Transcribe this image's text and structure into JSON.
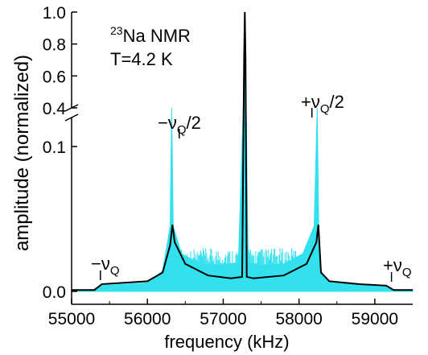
{
  "chart_data": {
    "type": "line",
    "xlabel": "frequency (kHz)",
    "ylabel": "amplitude (normalized)",
    "xlim": [
      55000,
      59500
    ],
    "x_ticks": [
      "55000",
      "56000",
      "57000",
      "58000",
      "59000"
    ],
    "y_lower": {
      "range": [
        0,
        0.12
      ],
      "ticks": [
        "0.0",
        "0.1"
      ]
    },
    "y_upper": {
      "range": [
        0.4,
        1.0
      ],
      "ticks": [
        "0.4",
        "0.6",
        "0.8",
        "1.0"
      ]
    },
    "axis_break": true,
    "annotations": {
      "nucleus_sup": "23",
      "nucleus": "Na NMR",
      "temperature": "T=4.2 K",
      "left_half_prefix": "−",
      "left_half_nu": "ν",
      "left_half_sub": "Q",
      "left_half_suffix": "/2",
      "right_half_prefix": "+",
      "right_half_nu": "ν",
      "right_half_sub": "Q",
      "right_half_suffix": "/2",
      "left_sat_prefix": "−",
      "left_sat_nu": "ν",
      "left_sat_sub": "Q",
      "right_sat_prefix": "+",
      "right_sat_nu": "ν",
      "right_sat_sub": "Q"
    },
    "series": [
      {
        "style": "filled noisy experimental spectrum",
        "color": "#33e0ee",
        "x": [
          55000,
          55300,
          55400,
          56000,
          56200,
          56300,
          56320,
          56340,
          56450,
          56700,
          57000,
          57200,
          57270,
          57285,
          57300,
          57330,
          57500,
          57800,
          58050,
          58200,
          58240,
          58260,
          58290,
          58400,
          58800,
          59150,
          59250,
          59500
        ],
        "y": [
          0.001,
          0.001,
          0.004,
          0.006,
          0.014,
          0.045,
          0.125,
          0.045,
          0.026,
          0.019,
          0.018,
          0.02,
          0.5,
          1.0,
          0.5,
          0.02,
          0.018,
          0.019,
          0.026,
          0.045,
          0.125,
          0.045,
          0.014,
          0.006,
          0.005,
          0.004,
          0.001,
          0.001
        ]
      },
      {
        "style": "simulated line shape",
        "color": "#000000",
        "x": [
          55000,
          55300,
          55400,
          56000,
          56200,
          56300,
          56330,
          56360,
          56500,
          56800,
          57100,
          57250,
          57275,
          57285,
          57295,
          57310,
          57400,
          57800,
          58100,
          58230,
          58255,
          58290,
          58400,
          58800,
          59150,
          59250,
          59500
        ],
        "y": [
          0.001,
          0.001,
          0.005,
          0.007,
          0.013,
          0.032,
          0.046,
          0.034,
          0.019,
          0.011,
          0.009,
          0.01,
          0.7,
          1.0,
          0.7,
          0.01,
          0.009,
          0.011,
          0.019,
          0.034,
          0.046,
          0.013,
          0.007,
          0.005,
          0.004,
          0.001,
          0.001
        ]
      }
    ]
  }
}
